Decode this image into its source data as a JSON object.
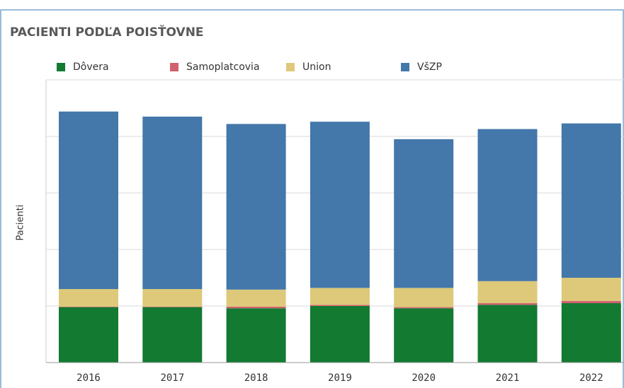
{
  "chart_data": {
    "type": "stacked_bar",
    "title": "PACIENTI PODĽA POISŤOVNE",
    "y_label": "Pacienti",
    "categories": [
      "2016",
      "2017",
      "2018",
      "2019",
      "2020",
      "2021",
      "2022"
    ],
    "series": [
      {
        "name": "Dôvera",
        "color": "#127a31",
        "values": [
          0.98,
          0.98,
          0.96,
          1.0,
          0.96,
          1.02,
          1.05
        ]
      },
      {
        "name": "Samoplatcovia",
        "color": "#d0616f",
        "values": [
          0.01,
          0.01,
          0.03,
          0.02,
          0.02,
          0.03,
          0.04
        ]
      },
      {
        "name": "Union",
        "color": "#ddc979",
        "values": [
          0.31,
          0.31,
          0.3,
          0.3,
          0.34,
          0.39,
          0.41
        ]
      },
      {
        "name": "VšZP",
        "color": "#4477aa",
        "values": [
          3.14,
          3.05,
          2.93,
          2.94,
          2.63,
          2.69,
          2.73
        ]
      }
    ],
    "ylim": [
      0,
      5
    ],
    "grid": true
  }
}
